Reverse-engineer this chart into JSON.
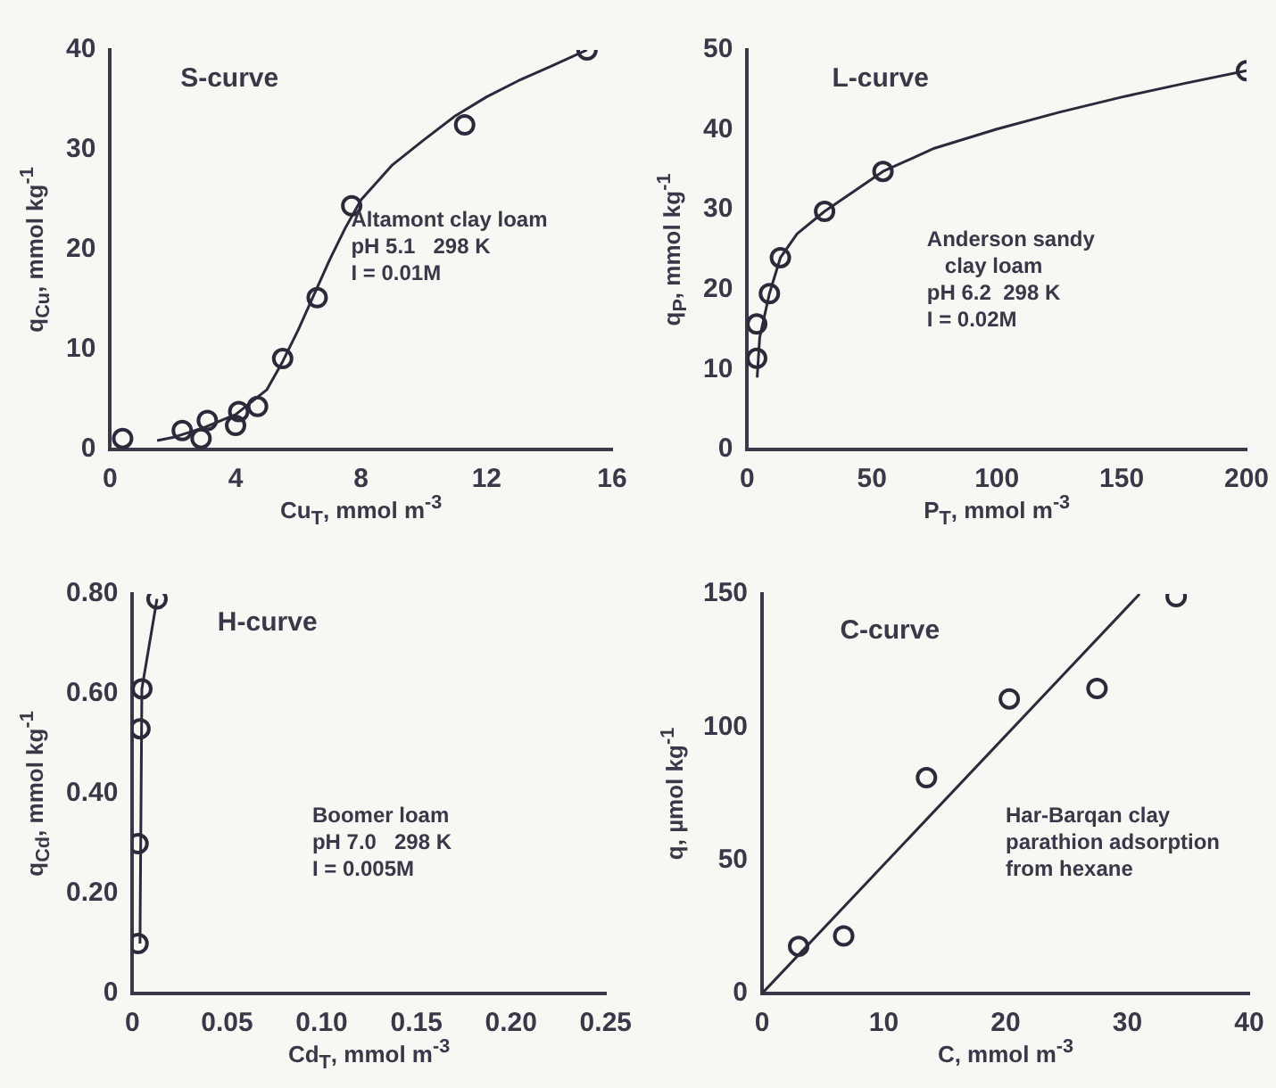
{
  "chart_data": [
    {
      "type": "scatter",
      "title": "S-curve",
      "xlabel": "Cu$_{T}$, mmol m$^{-3}$",
      "ylabel": "q$_{Cu}$, mmol kg$^{-1}$",
      "xlim": [
        0,
        16
      ],
      "xticks": [
        0,
        4,
        8,
        12,
        16
      ],
      "ylim": [
        0,
        40
      ],
      "yticks": [
        0,
        10,
        20,
        30,
        40
      ],
      "annotations": [
        "Altamont clay loam",
        "pH 5.1   298 K",
        "I = 0.01M"
      ],
      "series": [
        {
          "type": "scatter",
          "marker": "circle",
          "color": "#2b2a3a",
          "x": [
            0.4,
            2.3,
            2.9,
            3.1,
            4.0,
            4.1,
            4.7,
            5.5,
            6.6,
            7.7,
            11.3,
            15.2
          ],
          "values": [
            1.1,
            1.9,
            1.1,
            2.9,
            2.4,
            3.8,
            4.3,
            9.1,
            15.2,
            24.4,
            32.5,
            40
          ]
        },
        {
          "type": "line",
          "marker": "none",
          "color": "#2b2a3a",
          "x": [
            1.5,
            2,
            3,
            4,
            5,
            5.5,
            6,
            6.5,
            7,
            7.5,
            8,
            9,
            10,
            11,
            12,
            13,
            14,
            15.2
          ],
          "values": [
            0.9,
            1.2,
            2.2,
            3.5,
            6,
            8.8,
            12,
            15.5,
            19,
            22.2,
            25,
            28.5,
            31,
            33.4,
            35.3,
            36.9,
            38.3,
            40
          ]
        }
      ]
    },
    {
      "type": "scatter",
      "title": "L-curve",
      "xlabel": "P$_{T}$, mmol m$^{-3}$",
      "ylabel": "q$_{P}$, mmol kg$^{-1}$",
      "xlim": [
        0,
        200
      ],
      "xticks": [
        0,
        50,
        100,
        150,
        200
      ],
      "ylim": [
        0,
        50
      ],
      "yticks": [
        0,
        10,
        20,
        30,
        40,
        50
      ],
      "annotations": [
        "Anderson sandy",
        "   clay loam",
        "pH 6.2  298 K",
        "I = 0.02M"
      ],
      "series": [
        {
          "type": "scatter",
          "marker": "circle",
          "color": "#2b2a3a",
          "x": [
            3.8,
            3.8,
            8.9,
            13.3,
            31,
            54.4,
            200
          ],
          "values": [
            11.4,
            15.7,
            19.5,
            24,
            29.8,
            34.8,
            47.4
          ]
        },
        {
          "type": "line",
          "marker": "none",
          "color": "#2b2a3a",
          "x": [
            4,
            5,
            8.9,
            13.3,
            20,
            31,
            54.4,
            75,
            100,
            125,
            150,
            175,
            200
          ],
          "values": [
            9,
            14,
            19.5,
            24,
            27,
            29.8,
            34.8,
            37.7,
            40.1,
            42.2,
            44.1,
            45.8,
            47.4
          ]
        }
      ]
    },
    {
      "type": "scatter",
      "title": "H-curve",
      "xlabel": "Cd$_{T}$, mmol m$^{-3}$",
      "ylabel": "q$_{Cd}$, mmol kg$^{-1}$",
      "xlim": [
        0,
        0.25
      ],
      "xticks": [
        0,
        0.05,
        {
          "value": 0.1,
          "label": "0.10"
        },
        0.15,
        {
          "value": 0.2,
          "label": "0.20"
        },
        0.25
      ],
      "ylim": [
        0,
        0.8
      ],
      "yticks": [
        0,
        {
          "value": 0.2,
          "label": "0.20"
        },
        {
          "value": 0.4,
          "label": "0.40"
        },
        {
          "value": 0.6,
          "label": "0.60"
        },
        {
          "value": 0.8,
          "label": "0.80"
        }
      ],
      "annotations": [
        "Boomer loam",
        "pH 7.0   298 K",
        "I = 0.005M"
      ],
      "series": [
        {
          "type": "scatter",
          "marker": "circle",
          "color": "#2b2a3a",
          "x": [
            0.003,
            0.003,
            0.004,
            0.005,
            0.013
          ],
          "values": [
            0.1,
            0.3,
            0.53,
            0.61,
            0.79
          ]
        },
        {
          "type": "line",
          "marker": "none",
          "color": "#2b2a3a",
          "x": [
            0.004,
            0.005,
            0.013
          ],
          "values": [
            0.1,
            0.61,
            0.79
          ]
        }
      ]
    },
    {
      "type": "scatter",
      "title": "C-curve",
      "xlabel": "C, mmol m$^{-3}$",
      "ylabel": "q, µmol kg$^{-1}$",
      "xlim": [
        0,
        40
      ],
      "xticks": [
        0,
        10,
        20,
        30,
        40
      ],
      "ylim": [
        0,
        150
      ],
      "yticks": [
        0,
        50,
        100,
        150
      ],
      "annotations": [
        "Har-Barqan clay",
        "parathion adsorption",
        "from hexane"
      ],
      "series": [
        {
          "type": "scatter",
          "marker": "circle",
          "color": "#2b2a3a",
          "x": [
            3.0,
            6.7,
            13.5,
            20.3,
            27.5,
            34
          ],
          "values": [
            17.7,
            21.6,
            81,
            110.6,
            114.5,
            149
          ]
        },
        {
          "type": "line",
          "marker": "none",
          "color": "#2b2a3a",
          "x": [
            0,
            31
          ],
          "values": [
            0,
            150
          ]
        }
      ]
    }
  ]
}
